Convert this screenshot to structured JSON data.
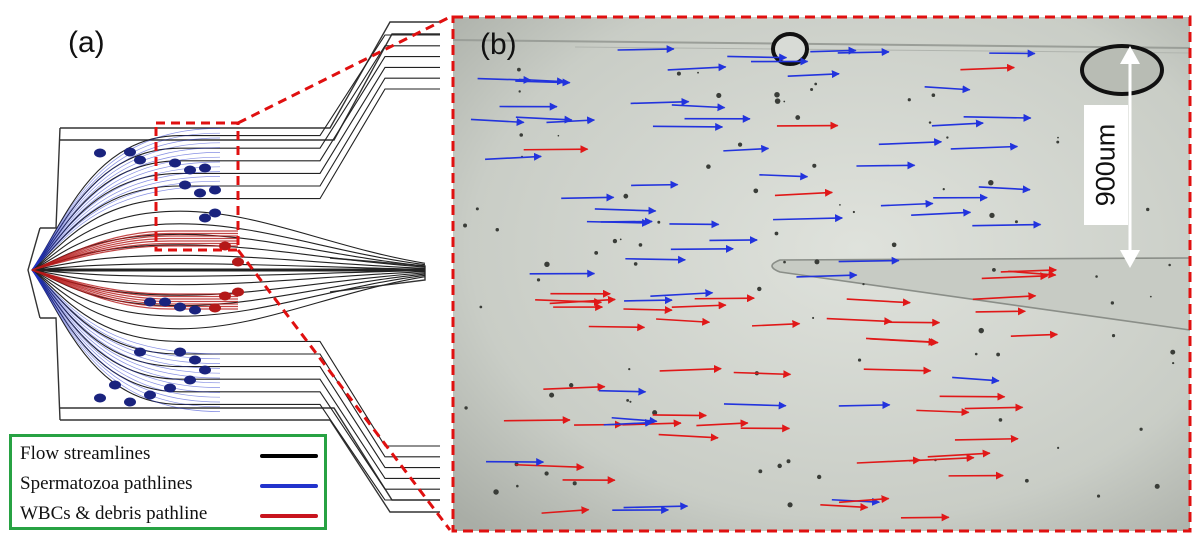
{
  "panel_a_label": "(a)",
  "panel_b_label": "(b)",
  "scale_label": "900um",
  "legend": [
    {
      "label": "Flow streamlines",
      "color": "#000000"
    },
    {
      "label": "Spermatozoa pathlines",
      "color": "#2233cc"
    },
    {
      "label": "WBCs & debris pathline",
      "color": "#c8141e"
    }
  ],
  "colors": {
    "streamline": "#222222",
    "sperm": "#2233cc",
    "sperm_dot": "#1a237e",
    "wbc": "#b41818",
    "wbc_arrow": "#e01818",
    "dash_box": "#e01010",
    "legend_border": "#27a243",
    "micro_bg": "#cfd3cc"
  }
}
